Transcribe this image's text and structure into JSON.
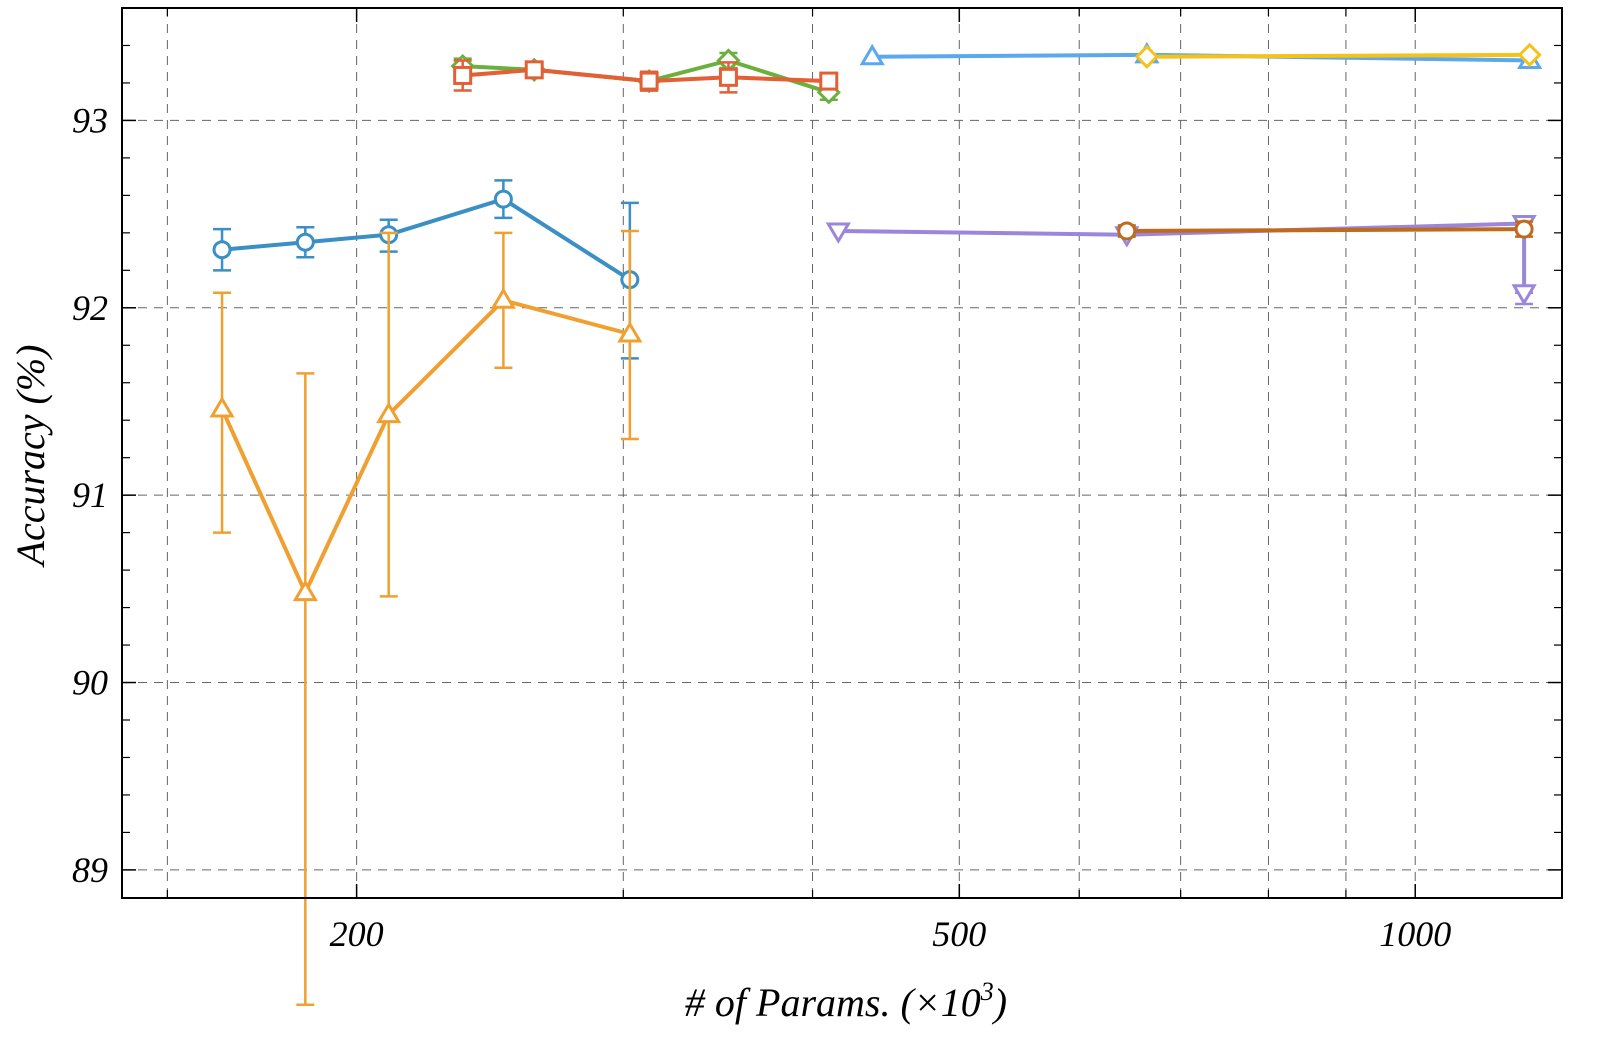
{
  "chart_data": {
    "type": "line",
    "title": "",
    "xlabel": "# of Params. (×10",
    "xlabel_sup": "3",
    "xlabel_suffix": ")",
    "ylabel": "Accuracy (%)",
    "xscale": "log",
    "xlim": [
      140,
      1250
    ],
    "ylim": [
      88.85,
      93.6
    ],
    "grid": true,
    "x_major_ticks": [
      200,
      500,
      1000
    ],
    "x_major_tick_labels": [
      "200",
      "500",
      "1000"
    ],
    "x_minor_ticks": [
      150,
      300,
      400,
      600,
      700,
      800,
      900
    ],
    "y_ticks": [
      89,
      90,
      91,
      92,
      93
    ],
    "y_tick_labels": [
      "89",
      "90",
      "91",
      "92",
      "93"
    ],
    "series": [
      {
        "name": "series-blue-circle",
        "color": "#3a8fc4",
        "marker": "circle",
        "line_width": 4,
        "x": [
          163,
          185,
          210,
          250,
          303
        ],
        "y": [
          92.31,
          92.35,
          92.39,
          92.58,
          92.15
        ],
        "err_low": [
          0.11,
          0.08,
          0.09,
          0.1,
          0.42
        ],
        "err_high": [
          0.11,
          0.08,
          0.08,
          0.1,
          0.41
        ]
      },
      {
        "name": "series-orange-triangle",
        "color": "#f0a030",
        "marker": "triangle-up",
        "line_width": 4,
        "x": [
          163,
          185,
          210,
          250,
          303
        ],
        "y": [
          91.46,
          90.48,
          91.43,
          92.04,
          91.86
        ],
        "err_low": [
          0.66,
          2.2,
          0.97,
          0.36,
          0.56
        ],
        "err_high": [
          0.62,
          1.17,
          0.97,
          0.36,
          0.55
        ]
      },
      {
        "name": "series-green-diamond",
        "color": "#6bb03e",
        "marker": "diamond",
        "line_width": 4,
        "x": [
          235,
          262,
          312,
          352,
          410
        ],
        "y": [
          93.29,
          93.27,
          93.21,
          93.32,
          93.15
        ],
        "err_low": [
          0.04,
          0.03,
          0.05,
          0.04,
          0.04
        ],
        "err_high": [
          0.04,
          0.03,
          0.05,
          0.04,
          0.04
        ]
      },
      {
        "name": "series-red-square",
        "color": "#e35f35",
        "marker": "square",
        "line_width": 4,
        "x": [
          235,
          262,
          312,
          352,
          410
        ],
        "y": [
          93.24,
          93.27,
          93.21,
          93.23,
          93.21
        ],
        "err_low": [
          0.08,
          0.03,
          0.05,
          0.08,
          0.04
        ],
        "err_high": [
          0.08,
          0.03,
          0.05,
          0.08,
          0.04
        ]
      },
      {
        "name": "series-lightblue-triangle",
        "color": "#5ca8ee",
        "marker": "triangle-up",
        "line_width": 4,
        "x": [
          438,
          665,
          1190
        ],
        "y": [
          93.34,
          93.35,
          93.32
        ],
        "err_low": [
          0,
          0,
          0
        ],
        "err_high": [
          0,
          0,
          0
        ]
      },
      {
        "name": "series-yellow-diamond",
        "color": "#f5c21a",
        "marker": "diamond",
        "line_width": 4,
        "x": [
          665,
          1190
        ],
        "y": [
          93.34,
          93.35
        ],
        "err_low": [
          0,
          0
        ],
        "err_high": [
          0,
          0
        ]
      },
      {
        "name": "series-purple-triangle-down",
        "color": "#9a86da",
        "marker": "triangle-down",
        "line_width": 4,
        "x": [
          416,
          645,
          1180,
          1180
        ],
        "y": [
          92.41,
          92.39,
          92.45,
          92.08
        ],
        "err_low": [
          0,
          0,
          0,
          0.06
        ],
        "err_high": [
          0,
          0,
          0,
          0
        ]
      },
      {
        "name": "series-brown-circle",
        "color": "#c06a1e",
        "marker": "circle",
        "line_width": 4,
        "x": [
          645,
          1180
        ],
        "y": [
          92.41,
          92.42
        ],
        "err_low": [
          0.03,
          0.04
        ],
        "err_high": [
          0.03,
          0.04
        ]
      }
    ]
  }
}
